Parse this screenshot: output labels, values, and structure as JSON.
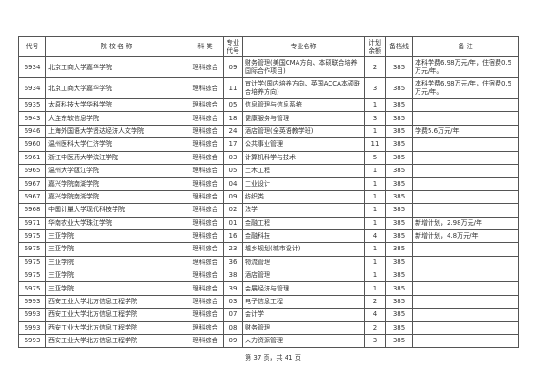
{
  "headers": [
    "代号",
    "院 校 名 称",
    "科 类",
    "专业代号",
    "专业名称",
    "计划余额",
    "备档线",
    "备 注"
  ],
  "rows": [
    [
      "6934",
      "北京工商大学嘉华学院",
      "理科综合",
      "09",
      "财务管理(美国CMA方向、本硕联合培养国际合作项目)",
      "2",
      "385",
      "本科学费6.98万元/年，住宿费0.5万元/年。"
    ],
    [
      "6934",
      "北京工商大学嘉华学院",
      "理科综合",
      "11",
      "审计学(国内培养方向、英国ACCA本硕联合培养方向)",
      "3",
      "385",
      "本科学费6.98万元/年，住宿费0.5万元/年。"
    ],
    [
      "6935",
      "太原科技大学华科学院",
      "理科综合",
      "05",
      "信息管理与信息系统",
      "1",
      "385",
      ""
    ],
    [
      "6943",
      "大连东软信息学院",
      "理科综合",
      "18",
      "健康服务与管理",
      "3",
      "385",
      ""
    ],
    [
      "6946",
      "上海外国语大学贤达经济人文学院",
      "理科综合",
      "24",
      "酒店管理(全英语教学班)",
      "1",
      "385",
      "学费5.6万元/年"
    ],
    [
      "6960",
      "温州医科大学仁济学院",
      "理科综合",
      "17",
      "公共事业管理",
      "11",
      "385",
      ""
    ],
    [
      "6961",
      "浙江中医药大学滨江学院",
      "理科综合",
      "03",
      "计算机科学与技术",
      "5",
      "385",
      ""
    ],
    [
      "6965",
      "温州大学瓯江学院",
      "理科综合",
      "05",
      "土木工程",
      "1",
      "385",
      ""
    ],
    [
      "6967",
      "嘉兴学院南湖学院",
      "理科综合",
      "04",
      "工业设计",
      "1",
      "385",
      ""
    ],
    [
      "6967",
      "嘉兴学院南湖学院",
      "理科综合",
      "09",
      "纺织类",
      "1",
      "385",
      ""
    ],
    [
      "6968",
      "中国计量大学现代科技学院",
      "理科综合",
      "02",
      "法学",
      "1",
      "385",
      ""
    ],
    [
      "6971",
      "华南农业大学珠江学院",
      "理科综合",
      "01",
      "金融工程",
      "1",
      "385",
      "新增计划，2.98万元/年"
    ],
    [
      "6975",
      "三亚学院",
      "理科综合",
      "16",
      "金融科技",
      "4",
      "385",
      "新增计划，4.8万元/年"
    ],
    [
      "6975",
      "三亚学院",
      "理科综合",
      "23",
      "城乡规划(城市设计)",
      "1",
      "385",
      ""
    ],
    [
      "6975",
      "三亚学院",
      "理科综合",
      "36",
      "物流管理",
      "1",
      "385",
      ""
    ],
    [
      "6975",
      "三亚学院",
      "理科综合",
      "38",
      "酒店管理",
      "1",
      "385",
      ""
    ],
    [
      "6975",
      "三亚学院",
      "理科综合",
      "39",
      "会展经济与管理",
      "1",
      "385",
      ""
    ],
    [
      "6993",
      "西安工业大学北方信息工程学院",
      "理科综合",
      "03",
      "电子信息工程",
      "2",
      "385",
      ""
    ],
    [
      "6993",
      "西安工业大学北方信息工程学院",
      "理科综合",
      "07",
      "会计学",
      "4",
      "385",
      ""
    ],
    [
      "6993",
      "西安工业大学北方信息工程学院",
      "理科综合",
      "08",
      "财务管理",
      "2",
      "385",
      ""
    ],
    [
      "6993",
      "西安工业大学北方信息工程学院",
      "理科综合",
      "09",
      "人力资源管理",
      "3",
      "385",
      ""
    ]
  ],
  "footer": "第 37 页，共 41 页"
}
